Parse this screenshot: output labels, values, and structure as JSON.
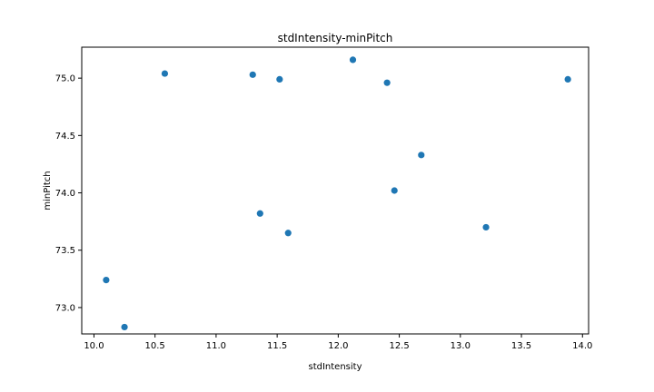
{
  "chart_data": {
    "type": "scatter",
    "title": "stdIntensity-minPitch",
    "xlabel": "stdIntensity",
    "ylabel": "minPitch",
    "xlim": [
      9.9,
      14.05
    ],
    "ylim": [
      72.77,
      75.27
    ],
    "xticks": [
      10.0,
      10.5,
      11.0,
      11.5,
      12.0,
      12.5,
      13.0,
      13.5,
      14.0
    ],
    "yticks": [
      73.0,
      73.5,
      74.0,
      74.5,
      75.0
    ],
    "xtick_labels": [
      "10.0",
      "10.5",
      "11.0",
      "11.5",
      "12.0",
      "12.5",
      "13.0",
      "13.5",
      "14.0"
    ],
    "ytick_labels": [
      "73.0",
      "73.5",
      "74.0",
      "74.5",
      "75.0"
    ],
    "grid": false,
    "marker_color": "#1f77b4",
    "points": [
      {
        "x": 10.1,
        "y": 73.24
      },
      {
        "x": 10.25,
        "y": 72.83
      },
      {
        "x": 10.58,
        "y": 75.04
      },
      {
        "x": 11.3,
        "y": 75.03
      },
      {
        "x": 11.36,
        "y": 73.82
      },
      {
        "x": 11.52,
        "y": 74.99
      },
      {
        "x": 11.59,
        "y": 73.65
      },
      {
        "x": 12.12,
        "y": 75.16
      },
      {
        "x": 12.4,
        "y": 74.96
      },
      {
        "x": 12.46,
        "y": 74.02
      },
      {
        "x": 12.68,
        "y": 74.33
      },
      {
        "x": 13.21,
        "y": 73.7
      },
      {
        "x": 13.88,
        "y": 74.99
      }
    ]
  }
}
